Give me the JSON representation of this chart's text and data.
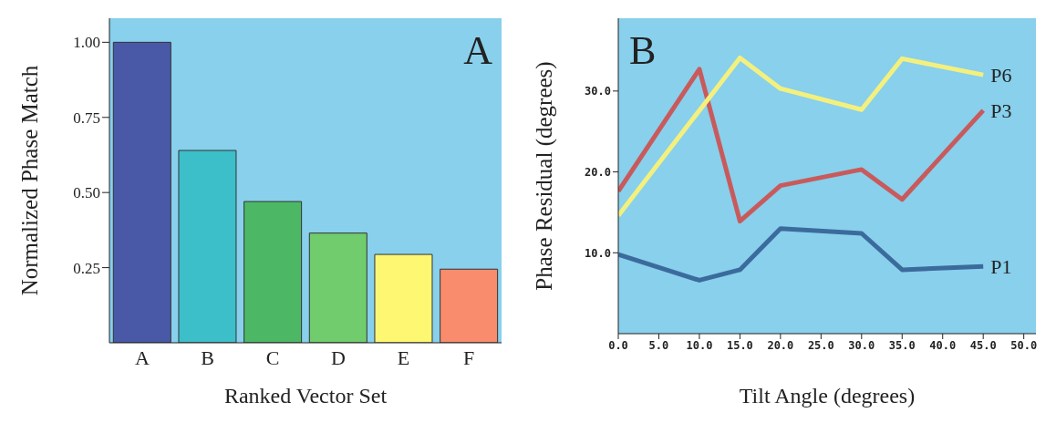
{
  "chart_data": [
    {
      "type": "bar",
      "annotations": [
        "A"
      ],
      "xlabel": "Ranked Vector Set",
      "ylabel": "Normalized Phase Match",
      "categories": [
        "A",
        "B",
        "C",
        "D",
        "E",
        "F"
      ],
      "values": [
        1.0,
        0.64,
        0.47,
        0.365,
        0.294,
        0.245
      ],
      "colors": [
        "#4a58a8",
        "#3cbfc9",
        "#4cb865",
        "#70cc6c",
        "#fdf771",
        "#f88c6c"
      ],
      "ylim": [
        0,
        1.08
      ],
      "yticks": [
        0.25,
        {
          "value": 0.5,
          "label": "0.50"
        },
        0.75,
        {
          "value": 1,
          "label": "1.00"
        }
      ],
      "grid": false,
      "legend": false
    },
    {
      "type": "line",
      "annotations": [
        "B"
      ],
      "xlabel": "Tilt Angle (degrees)",
      "ylabel": "Phase Residual (degrees)",
      "series": [
        {
          "name": "P1",
          "color": "#3b6b9c",
          "x": [
            0,
            10,
            15,
            20,
            30,
            35,
            45
          ],
          "values": [
            9.8,
            6.6,
            7.9,
            13.0,
            12.4,
            7.9,
            8.3
          ]
        },
        {
          "name": "P3",
          "color": "#c95a5c",
          "x": [
            0,
            10,
            15,
            20,
            30,
            35,
            45
          ],
          "values": [
            17.6,
            32.7,
            13.9,
            18.3,
            20.3,
            16.6,
            27.6
          ]
        },
        {
          "name": "P6",
          "color": "#f4f07e",
          "x": [
            0,
            15,
            20,
            30,
            35,
            45
          ],
          "values": [
            14.6,
            34.1,
            30.3,
            27.7,
            34.0,
            32.0
          ]
        }
      ],
      "xlim": [
        0,
        51.5
      ],
      "xticks": [
        {
          "value": 0,
          "label": "0.0"
        },
        {
          "value": 5,
          "label": "5.0"
        },
        {
          "value": 10,
          "label": "10.0"
        },
        {
          "value": 15,
          "label": "15.0"
        },
        {
          "value": 20,
          "label": "20.0"
        },
        {
          "value": 25,
          "label": "25.0"
        },
        {
          "value": 30,
          "label": "30.0"
        },
        {
          "value": 35,
          "label": "35.0"
        },
        {
          "value": 40,
          "label": "40.0"
        },
        {
          "value": 45,
          "label": "45.0"
        },
        {
          "value": 50,
          "label": "50.0"
        }
      ],
      "ylim": [
        0,
        39
      ],
      "yticks": [
        {
          "value": 10,
          "label": "10.0"
        },
        {
          "value": 20,
          "label": "20.0"
        },
        {
          "value": 30,
          "label": "30.0"
        }
      ],
      "grid": false,
      "legend": false,
      "marker": "none",
      "line_style": "solid"
    }
  ]
}
